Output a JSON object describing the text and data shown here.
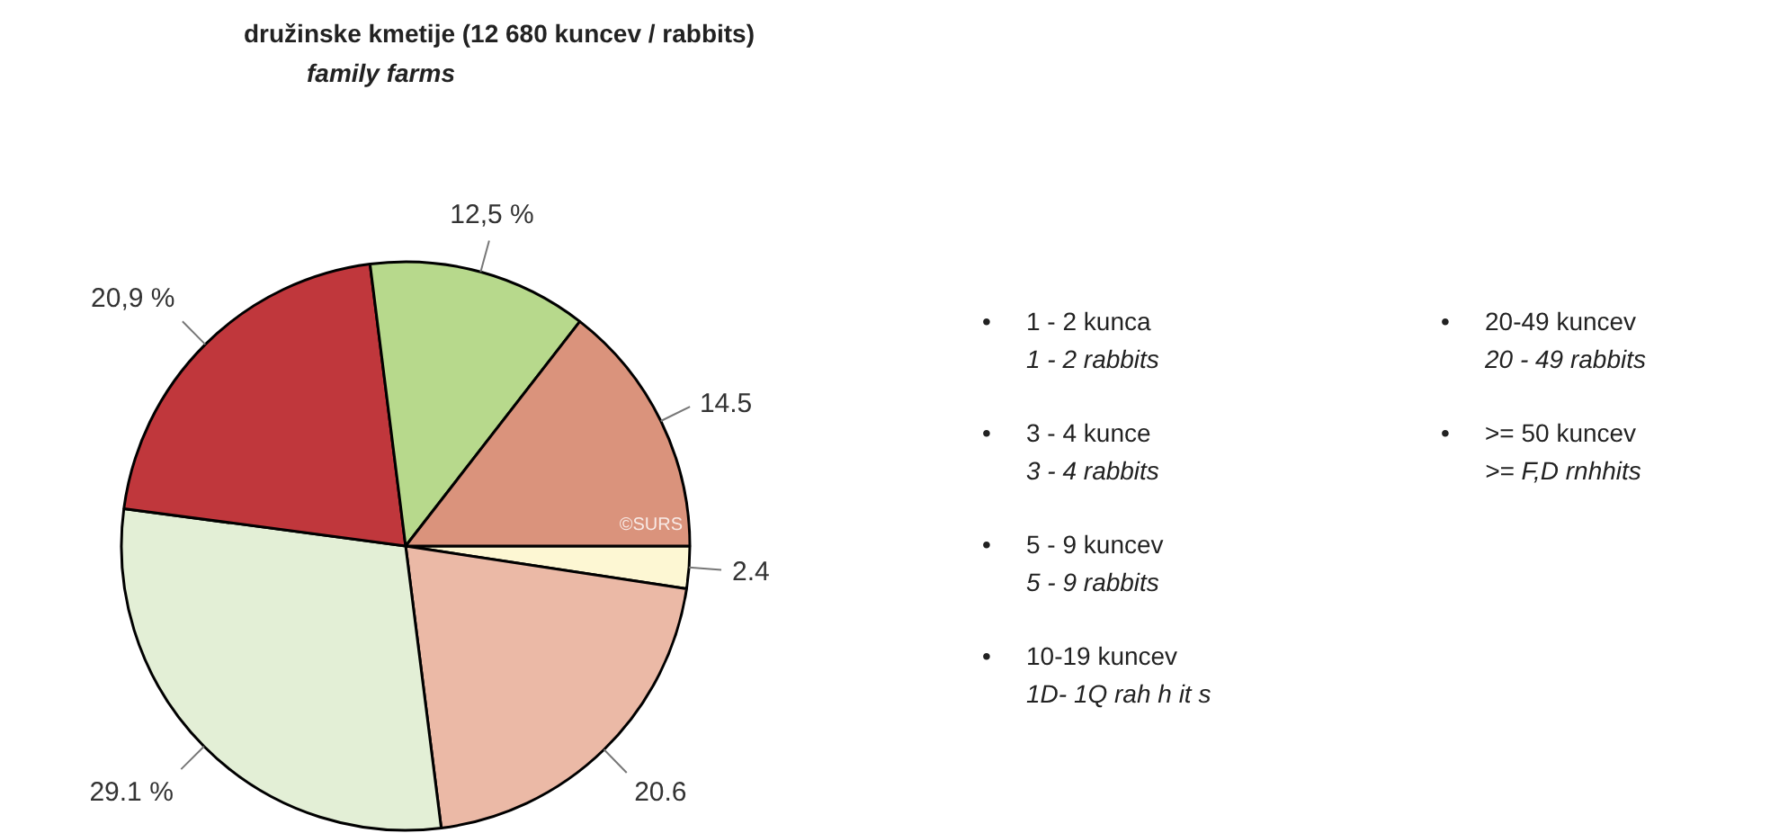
{
  "chart_data": {
    "type": "pie",
    "title": "družinske kmetije (12 680 kuncev / rabbits)",
    "subtitle": "family farms",
    "categories": [
      null,
      null,
      null,
      null,
      null,
      null
    ],
    "values": [
      2.4,
      20.6,
      29.1,
      20.9,
      12.5,
      14.5
    ],
    "colors": [
      "#fdf7d3",
      "#ebb9a6",
      "#e3efd6",
      "#c0373c",
      "#b7d98c",
      "#da937c"
    ],
    "value_labels": [
      "2.4",
      "20.6",
      "29.1 %",
      "20,9 %",
      "12,5 %",
      "14.5"
    ],
    "annotations": [
      "©SURS",
      "•\t1 - 2 kunca\n1 - 2 rabbits",
      "•\t3 - 4 kunce\n3 - 4 rabbits",
      "•\t5 - 9 kuncev\n5 - 9 rabbits",
      "•\t10-19 kuncev\n1D- 1Q rah h it s",
      "•\t20-49 kuncev\n20 - 49 rabbits",
      "•\t>= 50 kuncev\n>= F,D rnhhits"
    ]
  }
}
